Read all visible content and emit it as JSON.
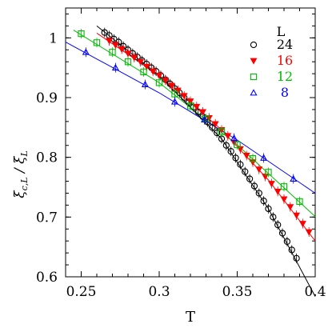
{
  "chart_data": {
    "type": "scatter",
    "title": "",
    "xlabel": "T",
    "ylabel": "ξ_{c,L} / ξ_L",
    "xlim": [
      0.24,
      0.4
    ],
    "ylim": [
      0.6,
      1.05
    ],
    "xticks": [
      0.25,
      0.3,
      0.35,
      0.4
    ],
    "xtick_labels": [
      "0.25",
      "0.3",
      "0.35",
      "0.4"
    ],
    "yticks": [
      0.6,
      0.7,
      0.8,
      0.9,
      1.0
    ],
    "ytick_labels": [
      "0.6",
      "0.7",
      "0.8",
      "0.9",
      "1"
    ],
    "legend": {
      "title": "L",
      "placement": "top-right"
    },
    "series": [
      {
        "name": "24",
        "marker": "circle",
        "color": "#000000",
        "x": [
          0.265,
          0.268,
          0.271,
          0.274,
          0.277,
          0.28,
          0.283,
          0.286,
          0.289,
          0.292,
          0.295,
          0.298,
          0.301,
          0.304,
          0.307,
          0.31,
          0.313,
          0.316,
          0.319,
          0.322,
          0.325,
          0.328,
          0.331,
          0.334,
          0.337,
          0.34,
          0.343,
          0.346,
          0.349,
          0.352,
          0.355,
          0.358,
          0.361,
          0.364,
          0.367,
          0.37,
          0.373,
          0.376,
          0.379,
          0.382,
          0.385,
          0.388
        ],
        "y": [
          1.009,
          1.004,
          0.998,
          0.993,
          0.986,
          0.98,
          0.974,
          0.968,
          0.962,
          0.956,
          0.95,
          0.944,
          0.937,
          0.93,
          0.923,
          0.915,
          0.908,
          0.9,
          0.892,
          0.884,
          0.876,
          0.868,
          0.859,
          0.85,
          0.841,
          0.831,
          0.82,
          0.81,
          0.799,
          0.788,
          0.776,
          0.764,
          0.752,
          0.74,
          0.727,
          0.714,
          0.7,
          0.687,
          0.673,
          0.659,
          0.645,
          0.631
        ],
        "fit": [
          [
            0.26,
            1.02
          ],
          [
            0.3,
            0.937
          ],
          [
            0.34,
            0.831
          ],
          [
            0.37,
            0.714
          ],
          [
            0.4,
            0.567
          ]
        ]
      },
      {
        "name": "16",
        "marker": "triangle-down",
        "color": "#ff0000",
        "x": [
          0.268,
          0.272,
          0.276,
          0.28,
          0.284,
          0.288,
          0.292,
          0.296,
          0.3,
          0.304,
          0.308,
          0.312,
          0.316,
          0.32,
          0.324,
          0.328,
          0.332,
          0.336,
          0.34,
          0.344,
          0.348,
          0.352,
          0.356,
          0.36,
          0.364,
          0.368,
          0.372,
          0.376,
          0.38,
          0.384,
          0.388,
          0.392,
          0.396
        ],
        "y": [
          0.995,
          0.988,
          0.981,
          0.974,
          0.967,
          0.96,
          0.952,
          0.944,
          0.937,
          0.929,
          0.92,
          0.912,
          0.903,
          0.894,
          0.885,
          0.876,
          0.866,
          0.856,
          0.846,
          0.836,
          0.825,
          0.814,
          0.803,
          0.792,
          0.78,
          0.768,
          0.756,
          0.743,
          0.73,
          0.717,
          0.703,
          0.689,
          0.675
        ],
        "fit": [
          [
            0.26,
            1.008
          ],
          [
            0.3,
            0.937
          ],
          [
            0.34,
            0.846
          ],
          [
            0.37,
            0.762
          ],
          [
            0.4,
            0.66
          ]
        ]
      },
      {
        "name": "12",
        "marker": "square",
        "color": "#00bb00",
        "x": [
          0.25,
          0.26,
          0.27,
          0.28,
          0.29,
          0.3,
          0.31,
          0.32,
          0.33,
          0.34,
          0.35,
          0.36,
          0.37,
          0.38,
          0.39
        ],
        "y": [
          1.007,
          0.992,
          0.976,
          0.96,
          0.943,
          0.925,
          0.906,
          0.886,
          0.865,
          0.843,
          0.821,
          0.798,
          0.775,
          0.751,
          0.726
        ],
        "fit": [
          [
            0.245,
            1.013
          ],
          [
            0.3,
            0.925
          ],
          [
            0.35,
            0.821
          ],
          [
            0.4,
            0.701
          ]
        ]
      },
      {
        "name": "8",
        "marker": "triangle-up",
        "color": "#0000ff",
        "x": [
          0.253,
          0.272,
          0.291,
          0.31,
          0.329,
          0.348,
          0.367,
          0.386
        ],
        "y": [
          0.976,
          0.95,
          0.922,
          0.893,
          0.863,
          0.832,
          0.799,
          0.764
        ],
        "fit": [
          [
            0.24,
            0.993
          ],
          [
            0.3,
            0.908
          ],
          [
            0.35,
            0.829
          ],
          [
            0.4,
            0.74
          ]
        ]
      }
    ]
  }
}
